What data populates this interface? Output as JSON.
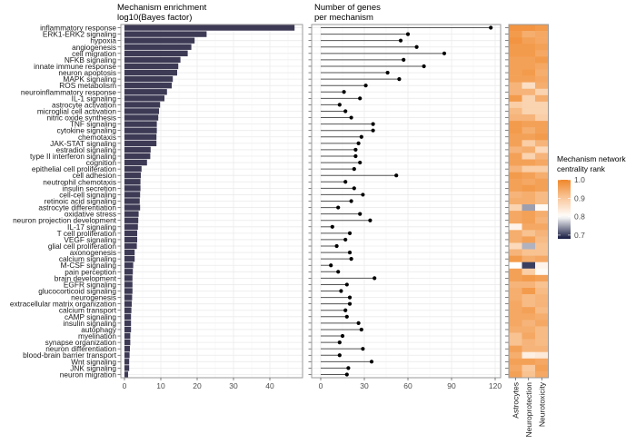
{
  "chart_data": [
    {
      "type": "bar",
      "orientation": "horizontal",
      "title": "Mechanism enrichment\nlog10(Bayes factor)",
      "categories": [
        "inflammatory response",
        "ERK1-ERK2 signaling",
        "hypoxia",
        "angiogenesis",
        "cell migration",
        "NFKB signaling",
        "innate immune response",
        "neuron apoptosis",
        "MAPK signaling",
        "ROS metabolism",
        "neuroinflammatory response",
        "IL-1 signaling",
        "astrocyte activation",
        "microglial cell activation",
        "nitric oxide synthesis",
        "TNF signaling",
        "cytokine signaling",
        "chemotaxis",
        "JAK-STAT signaling",
        "estradiol signaling",
        "type II interferon signaling",
        "cognition",
        "epithelial cell proliferation",
        "cell adhesion",
        "neutrophil chemotaxis",
        "insulin secretion",
        "cell-cell signaling",
        "retinoic acid signaling",
        "astrocyte differentiation",
        "oxidative stress",
        "neuron projection development",
        "IL-17 signaling",
        "T cell proliferation",
        "VEGF signaling",
        "glial cell proliferation",
        "axonogenesis",
        "calcium signaling",
        "M-CSF signaling",
        "pain perception",
        "brain development",
        "EGFR signaling",
        "glucocorticoid signaling",
        "neurogenesis",
        "extracellular matrix organization",
        "calcium transport",
        "cAMP signaling",
        "insulin signaling",
        "autophagy",
        "myelination",
        "synapse organization",
        "neuron differentiation",
        "blood-brain barrier transport",
        "Wnt signaling",
        "JNK signaling",
        "neuron migration"
      ],
      "values": [
        46.8,
        22.6,
        19.3,
        18.4,
        17.4,
        15.4,
        14.8,
        14.5,
        13.3,
        13.0,
        11.7,
        11.0,
        9.8,
        9.5,
        9.3,
        8.9,
        8.9,
        8.8,
        8.8,
        7.2,
        7.1,
        6.2,
        4.7,
        4.5,
        4.4,
        4.4,
        4.3,
        4.2,
        4.3,
        3.9,
        3.8,
        3.7,
        3.5,
        3.5,
        3.4,
        2.8,
        2.8,
        2.4,
        2.3,
        2.2,
        2.2,
        2.2,
        2.1,
        2.0,
        1.9,
        1.8,
        1.8,
        1.8,
        1.6,
        1.6,
        1.5,
        1.4,
        1.3,
        1.3,
        1.0
      ],
      "xlim": [
        0,
        49
      ],
      "xticks": [
        "0",
        "10",
        "20",
        "30",
        "40"
      ],
      "grid": true,
      "color": "#3d3a55"
    },
    {
      "type": "lollipop",
      "title": "Number of genes\nper mechanism",
      "values": [
        117,
        60,
        55,
        66,
        85,
        57,
        71,
        46,
        54,
        31,
        16,
        27,
        13,
        17,
        21,
        36,
        36,
        28,
        26,
        24,
        24,
        27,
        23,
        52,
        17,
        23,
        29,
        21,
        12,
        27,
        34,
        8,
        20,
        17,
        11,
        20,
        21,
        7,
        12,
        37,
        18,
        14,
        20,
        20,
        17,
        18,
        26,
        28,
        15,
        13,
        29,
        13,
        35,
        19,
        18
      ],
      "xlim": [
        0,
        123
      ],
      "xticks": [
        "0",
        "30",
        "60",
        "90",
        "120"
      ],
      "grid": true,
      "color": "#000000"
    },
    {
      "type": "heatmap",
      "columns": [
        "Astrocytes",
        "Neuroprotection",
        "Neurotoxicity"
      ],
      "legend_title": "Mechanism network\ncentrality rank",
      "legend_ticks": [
        "1.0",
        "0.9",
        "0.8",
        "0.7"
      ],
      "range": [
        0.68,
        1.0
      ],
      "colors": {
        "high": "#F0872A",
        "mid_high": "#F9C89C",
        "mid": "#FFFFFF",
        "low": "#14193F"
      },
      "legend_placement": "right",
      "values": [
        [
          0.98,
          0.98,
          0.97
        ],
        [
          0.97,
          0.94,
          0.95
        ],
        [
          0.98,
          0.96,
          0.95
        ],
        [
          0.97,
          0.97,
          0.96
        ],
        [
          0.97,
          0.97,
          0.95
        ],
        [
          0.96,
          0.96,
          0.97
        ],
        [
          0.96,
          0.96,
          0.95
        ],
        [
          0.96,
          0.97,
          0.94
        ],
        [
          0.96,
          0.96,
          0.95
        ],
        [
          0.93,
          0.86,
          0.94
        ],
        [
          0.93,
          0.93,
          0.88
        ],
        [
          0.97,
          0.88,
          0.94
        ],
        [
          0.89,
          0.88,
          0.88
        ],
        [
          0.92,
          0.88,
          0.88
        ],
        [
          0.93,
          0.93,
          0.89
        ],
        [
          0.97,
          0.96,
          0.96
        ],
        [
          0.97,
          0.94,
          0.96
        ],
        [
          0.96,
          0.96,
          0.97
        ],
        [
          0.96,
          0.89,
          0.93
        ],
        [
          0.93,
          0.94,
          0.87
        ],
        [
          0.96,
          0.88,
          0.93
        ],
        [
          0.96,
          0.96,
          0.95
        ],
        [
          0.93,
          0.89,
          0.89
        ],
        [
          0.97,
          0.96,
          0.94
        ],
        [
          0.96,
          0.95,
          0.96
        ],
        [
          0.96,
          0.97,
          0.96
        ],
        [
          0.93,
          0.94,
          0.92
        ],
        [
          0.94,
          0.94,
          0.92
        ],
        [
          0.88,
          0.75,
          0.81
        ],
        [
          0.95,
          0.96,
          0.94
        ],
        [
          0.95,
          0.96,
          0.93
        ],
        [
          0.82,
          0.95,
          0.95
        ],
        [
          0.94,
          0.91,
          0.93
        ],
        [
          0.94,
          0.96,
          0.92
        ],
        [
          0.87,
          0.76,
          0.91
        ],
        [
          0.93,
          0.91,
          0.91
        ],
        [
          0.97,
          0.94,
          0.95
        ],
        [
          0.8,
          0.7,
          0.82
        ],
        [
          0.96,
          0.89,
          0.81
        ],
        [
          0.96,
          0.97,
          0.96
        ],
        [
          0.93,
          0.93,
          0.91
        ],
        [
          0.94,
          0.97,
          0.92
        ],
        [
          0.94,
          0.92,
          0.93
        ],
        [
          0.95,
          0.92,
          0.93
        ],
        [
          0.95,
          0.96,
          0.92
        ],
        [
          0.95,
          0.95,
          0.94
        ],
        [
          0.95,
          0.93,
          0.95
        ],
        [
          0.94,
          0.94,
          0.92
        ],
        [
          0.91,
          0.95,
          0.92
        ],
        [
          0.91,
          0.93,
          0.92
        ],
        [
          0.96,
          0.93,
          0.93
        ],
        [
          0.94,
          0.83,
          0.84
        ],
        [
          0.96,
          0.96,
          0.95
        ],
        [
          0.95,
          0.9,
          0.96
        ],
        [
          0.96,
          0.91,
          0.95
        ]
      ]
    }
  ]
}
